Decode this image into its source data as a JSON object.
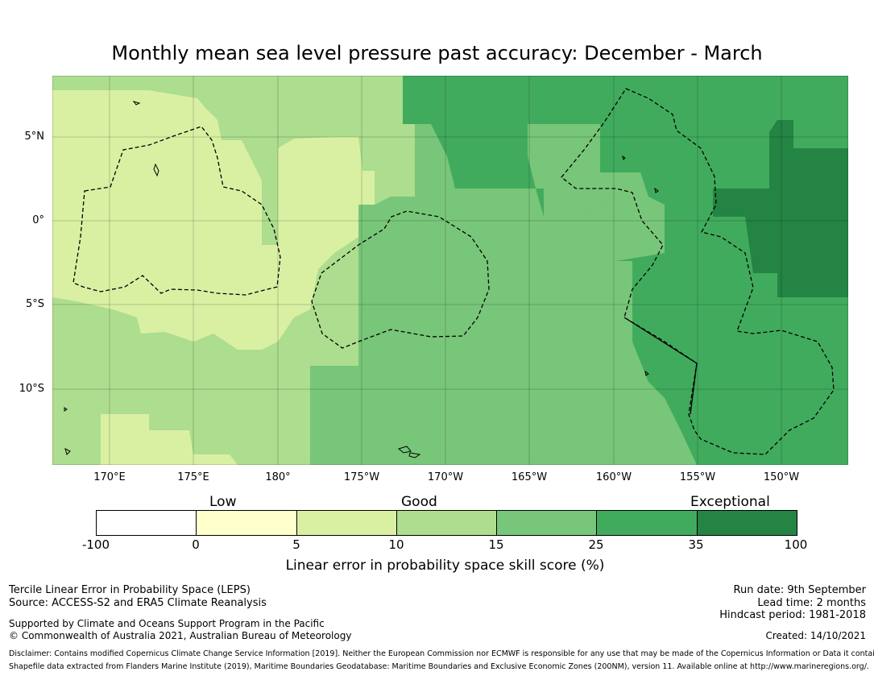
{
  "title": "Monthly mean sea level pressure past accuracy: December - March",
  "map": {
    "lat_labels": [
      "5°N",
      "0°",
      "5°S",
      "10°S"
    ],
    "lon_labels": [
      "170°E",
      "175°E",
      "180°",
      "175°W",
      "170°W",
      "165°W",
      "160°W",
      "155°W",
      "150°W"
    ]
  },
  "colorbar": {
    "categories": [
      "Low",
      "Good",
      "Exceptional"
    ],
    "ticks": [
      "-100",
      "0",
      "5",
      "10",
      "15",
      "25",
      "35",
      "100"
    ],
    "colors": [
      "#ffffff",
      "#ffffcc",
      "#d9f0a3",
      "#addd8e",
      "#78c679",
      "#41ab5d",
      "#238443"
    ],
    "label": "Linear error in probability space skill score (%)"
  },
  "footer": {
    "left": {
      "line1": "Tercile Linear Error in Probability Space (LEPS)",
      "line2": "Source: ACCESS-S2 and ERA5 Climate Reanalysis",
      "line3": "Supported by Climate and Oceans Support Program in the Pacific",
      "line4": "© Commonwealth of Australia 2021, Australian Bureau of Meteorology"
    },
    "right": {
      "run_date": "Run date: 9th September",
      "lead_time": "Lead time: 2 months",
      "hindcast": "Hindcast period: 1981-2018",
      "created": "Created: 14/10/2021"
    },
    "disclaimer": "Disclaimer: Contains modified Copernicus Climate Change Service Information [2019]. Neither the European Commission nor ECMWF is responsible for any use that may be made of the Copernicus Information or Data it contains.",
    "shapefile": "Shapefile data extracted from Flanders Marine Institute (2019), Maritime Boundaries Geodatabase: Maritime Boundaries and Exclusive Economic Zones (200NM), version 11. Available online at http://www.marineregions.org/."
  }
}
